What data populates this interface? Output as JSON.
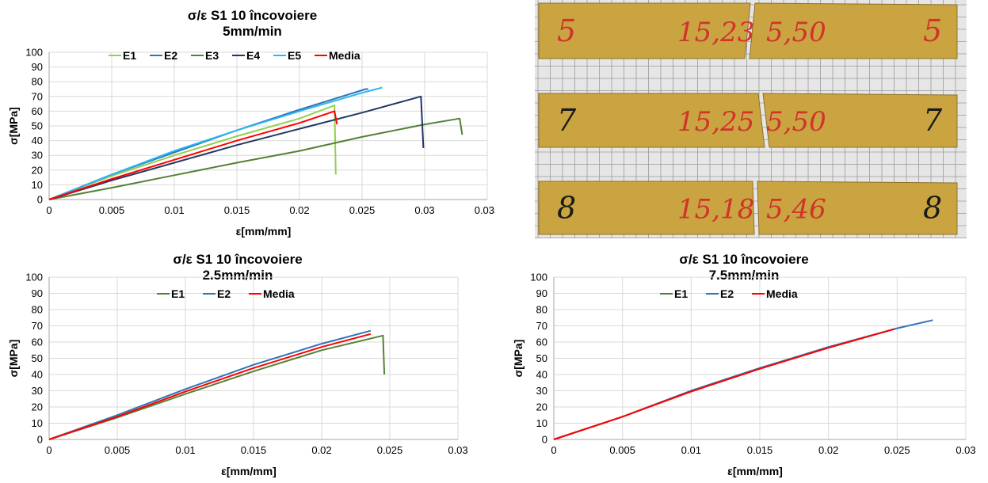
{
  "chart_data": [
    {
      "type": "line",
      "title": "σ/ε S1 10 încovoiere",
      "subtitle": "5mm/min",
      "xlabel": "ε[mm/mm]",
      "ylabel": "σ[MPa]",
      "xlim": [
        0,
        0.035
      ],
      "ylim": [
        0,
        100
      ],
      "xticks": [
        "0",
        "0.005",
        "0.01",
        "0.015",
        "0.02",
        "0.025",
        "0.03",
        "0.035"
      ],
      "yticks": [
        "0",
        "10",
        "20",
        "30",
        "40",
        "50",
        "60",
        "70",
        "80",
        "90",
        "100"
      ],
      "grid": true,
      "legend_position": "top",
      "series": [
        {
          "name": "E1",
          "color": "#92d050",
          "points": [
            [
              0,
              0
            ],
            [
              0.005,
              16
            ],
            [
              0.01,
              30
            ],
            [
              0.015,
              43
            ],
            [
              0.02,
              55
            ],
            [
              0.0228,
              64
            ],
            [
              0.0229,
              17
            ]
          ]
        },
        {
          "name": "E2",
          "color": "#2e75b6",
          "points": [
            [
              0,
              0
            ],
            [
              0.005,
              17
            ],
            [
              0.01,
              32
            ],
            [
              0.015,
              47
            ],
            [
              0.02,
              61
            ],
            [
              0.0253,
              75
            ],
            [
              0.0255,
              75
            ]
          ]
        },
        {
          "name": "E3",
          "color": "#548235",
          "points": [
            [
              0,
              0
            ],
            [
              0.005,
              8
            ],
            [
              0.01,
              16.5
            ],
            [
              0.015,
              25
            ],
            [
              0.02,
              33
            ],
            [
              0.025,
              42.5
            ],
            [
              0.03,
              51
            ],
            [
              0.0328,
              55
            ],
            [
              0.033,
              44
            ]
          ]
        },
        {
          "name": "E4",
          "color": "#1f3864",
          "points": [
            [
              0,
              0
            ],
            [
              0.005,
              13
            ],
            [
              0.01,
              25
            ],
            [
              0.015,
              37
            ],
            [
              0.02,
              48
            ],
            [
              0.025,
              59
            ],
            [
              0.0297,
              70
            ],
            [
              0.0299,
              35
            ]
          ]
        },
        {
          "name": "E5",
          "color": "#29b6f6",
          "points": [
            [
              0,
              0
            ],
            [
              0.005,
              17
            ],
            [
              0.01,
              33
            ],
            [
              0.015,
              47
            ],
            [
              0.02,
              60
            ],
            [
              0.025,
              72.5
            ],
            [
              0.0266,
              76
            ]
          ]
        },
        {
          "name": "Media",
          "color": "#ff0000",
          "points": [
            [
              0,
              0
            ],
            [
              0.005,
              14
            ],
            [
              0.01,
              27
            ],
            [
              0.015,
              40
            ],
            [
              0.02,
              52
            ],
            [
              0.0228,
              60
            ],
            [
              0.023,
              51
            ]
          ]
        }
      ]
    },
    {
      "type": "line",
      "title": "σ/ε S1 10 încovoiere",
      "subtitle": "2.5mm/min",
      "xlabel": "ε[mm/mm]",
      "ylabel": "σ[MPa]",
      "xlim": [
        0,
        0.03
      ],
      "ylim": [
        0,
        100
      ],
      "xticks": [
        "0",
        "0.005",
        "0.01",
        "0.015",
        "0.02",
        "0.025",
        "0.03"
      ],
      "yticks": [
        "0",
        "10",
        "20",
        "30",
        "40",
        "50",
        "60",
        "70",
        "80",
        "90",
        "100"
      ],
      "grid": true,
      "legend_position": "top",
      "series": [
        {
          "name": "E1",
          "color": "#548235",
          "points": [
            [
              0,
              0
            ],
            [
              0.005,
              13.5
            ],
            [
              0.01,
              28
            ],
            [
              0.015,
              42
            ],
            [
              0.02,
              55
            ],
            [
              0.0245,
              64
            ],
            [
              0.0246,
              40
            ]
          ]
        },
        {
          "name": "E2",
          "color": "#2e75b6",
          "points": [
            [
              0,
              0
            ],
            [
              0.005,
              15
            ],
            [
              0.01,
              31
            ],
            [
              0.015,
              46
            ],
            [
              0.02,
              59
            ],
            [
              0.0236,
              67
            ]
          ]
        },
        {
          "name": "Media",
          "color": "#ff0000",
          "points": [
            [
              0,
              0
            ],
            [
              0.005,
              14
            ],
            [
              0.01,
              29.5
            ],
            [
              0.015,
              44
            ],
            [
              0.02,
              57
            ],
            [
              0.0236,
              65
            ]
          ]
        }
      ]
    },
    {
      "type": "line",
      "title": "σ/ε S1 10 încovoiere",
      "subtitle": "7.5mm/min",
      "xlabel": "ε[mm/mm]",
      "ylabel": "σ[MPa]",
      "xlim": [
        0,
        0.03
      ],
      "ylim": [
        0,
        100
      ],
      "xticks": [
        "0",
        "0.005",
        "0.01",
        "0.015",
        "0.02",
        "0.025",
        "0.03"
      ],
      "yticks": [
        "0",
        "10",
        "20",
        "30",
        "40",
        "50",
        "60",
        "70",
        "80",
        "90",
        "100"
      ],
      "grid": true,
      "legend_position": "top",
      "series": [
        {
          "name": "E1",
          "color": "#548235",
          "points": [
            [
              0,
              0
            ],
            [
              0.005,
              14
            ],
            [
              0.01,
              30
            ],
            [
              0.015,
              44
            ],
            [
              0.02,
              56.5
            ],
            [
              0.0248,
              68
            ]
          ]
        },
        {
          "name": "E2",
          "color": "#2e75b6",
          "points": [
            [
              0,
              0
            ],
            [
              0.005,
              14
            ],
            [
              0.01,
              30
            ],
            [
              0.015,
              44
            ],
            [
              0.02,
              57
            ],
            [
              0.025,
              68.5
            ],
            [
              0.0276,
              73.5
            ]
          ]
        },
        {
          "name": "Media",
          "color": "#ff0000",
          "points": [
            [
              0,
              0
            ],
            [
              0.005,
              14
            ],
            [
              0.01,
              29.5
            ],
            [
              0.015,
              43.5
            ],
            [
              0.02,
              56.5
            ],
            [
              0.0248,
              68
            ]
          ]
        }
      ]
    }
  ],
  "photo": {
    "specimens": [
      {
        "left_mark": "5",
        "width_text": "15,23",
        "thickness_text": "5,50",
        "right_mark": "5"
      },
      {
        "left_mark": "7",
        "width_text": "15,25",
        "thickness_text": "5,50",
        "right_mark": "7"
      },
      {
        "left_mark": "8",
        "width_text": "15,18",
        "thickness_text": "5,46",
        "right_mark": "8"
      }
    ],
    "specimen_color": "#c9a441",
    "ink_color": "#d0342c"
  }
}
